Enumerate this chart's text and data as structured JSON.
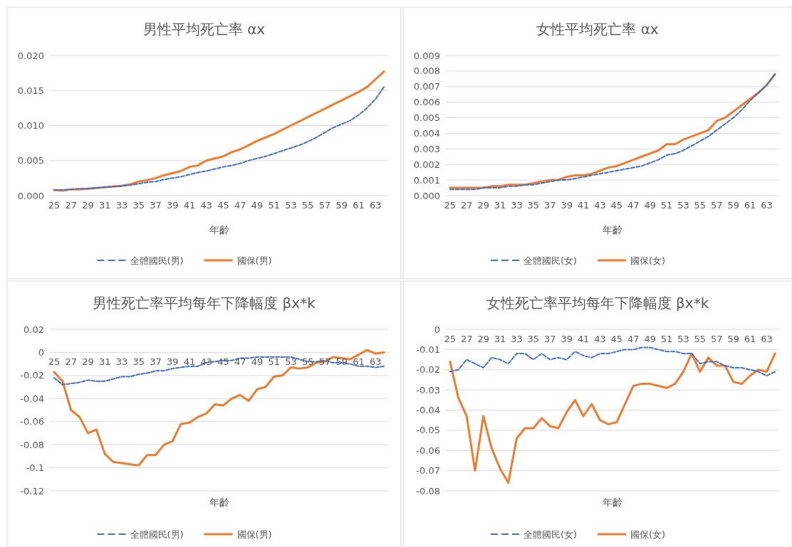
{
  "chart_data": [
    {
      "type": "line",
      "title": "男性平均死亡率 αx",
      "xlabel": "年齡",
      "categories": [
        "25",
        null,
        "27",
        null,
        "29",
        null,
        "31",
        null,
        "33",
        null,
        "35",
        null,
        "37",
        null,
        "39",
        null,
        "41",
        null,
        "43",
        null,
        "45",
        null,
        "47",
        null,
        "49",
        null,
        "51",
        null,
        "53",
        null,
        "55",
        null,
        "57",
        null,
        "59",
        null,
        "61",
        null,
        "63",
        null
      ],
      "series": [
        {
          "name": "全體國民(男)",
          "color": "#4472c4",
          "line_style": "dashed",
          "values": [
            0.0008,
            0.0008,
            0.0009,
            0.001,
            0.001,
            0.0011,
            0.0012,
            0.0013,
            0.0014,
            0.0015,
            0.0017,
            0.0019,
            0.002,
            0.0023,
            0.0025,
            0.0027,
            0.003,
            0.0033,
            0.0035,
            0.0038,
            0.0041,
            0.0043,
            0.0046,
            0.005,
            0.0053,
            0.0056,
            0.006,
            0.0064,
            0.0068,
            0.0072,
            0.0077,
            0.0083,
            0.009,
            0.0097,
            0.0102,
            0.0107,
            0.0115,
            0.0125,
            0.0138,
            0.0155
          ]
        },
        {
          "name": "國保(男)",
          "color": "#ed7d31",
          "line_style": "solid",
          "values": [
            0.0008,
            0.0007,
            0.0009,
            0.0009,
            0.001,
            0.0011,
            0.0012,
            0.0013,
            0.0014,
            0.0016,
            0.002,
            0.0022,
            0.0025,
            0.0029,
            0.0032,
            0.0035,
            0.0041,
            0.0043,
            0.005,
            0.0053,
            0.0056,
            0.0062,
            0.0066,
            0.0072,
            0.0078,
            0.0083,
            0.0088,
            0.0094,
            0.01,
            0.0106,
            0.0112,
            0.0118,
            0.0124,
            0.013,
            0.0136,
            0.0142,
            0.0148,
            0.0155,
            0.0166,
            0.0177
          ]
        }
      ],
      "ylim": [
        0,
        0.02
      ],
      "yticks": [
        {
          "value": 0,
          "label": "0.000"
        },
        {
          "value": 0.005,
          "label": "0.005"
        },
        {
          "value": 0.01,
          "label": "0.010"
        },
        {
          "value": 0.015,
          "label": "0.015"
        },
        {
          "value": 0.02,
          "label": "0.020"
        }
      ],
      "grid": "y",
      "legend": "bottom"
    },
    {
      "type": "line",
      "title": "女性平均死亡率 αx",
      "xlabel": "年齡",
      "categories": [
        "25",
        null,
        "27",
        null,
        "29",
        null,
        "31",
        null,
        "33",
        null,
        "35",
        null,
        "37",
        null,
        "39",
        null,
        "41",
        null,
        "43",
        null,
        "45",
        null,
        "47",
        null,
        "49",
        null,
        "51",
        null,
        "53",
        null,
        "55",
        null,
        "57",
        null,
        "59",
        null,
        "61",
        null,
        "63",
        null
      ],
      "series": [
        {
          "name": "全體國民(女)",
          "color": "#4472c4",
          "line_style": "dashed",
          "values": [
            0.0004,
            0.0004,
            0.0004,
            0.0004,
            0.0005,
            0.0005,
            0.0005,
            0.0006,
            0.0006,
            0.0007,
            0.0007,
            0.0008,
            0.0009,
            0.001,
            0.001,
            0.0011,
            0.0012,
            0.0013,
            0.0014,
            0.0015,
            0.0016,
            0.0017,
            0.0018,
            0.0019,
            0.0021,
            0.0023,
            0.0026,
            0.0027,
            0.0029,
            0.0032,
            0.0035,
            0.0038,
            0.0042,
            0.0046,
            0.005,
            0.0055,
            0.0061,
            0.0066,
            0.0071,
            0.0078
          ]
        },
        {
          "name": "國保(女)",
          "color": "#ed7d31",
          "line_style": "solid",
          "values": [
            0.0005,
            0.0005,
            0.0005,
            0.0005,
            0.0005,
            0.0006,
            0.0006,
            0.0007,
            0.0007,
            0.0007,
            0.0008,
            0.0009,
            0.001,
            0.001,
            0.0012,
            0.0013,
            0.0013,
            0.0014,
            0.0016,
            0.0018,
            0.0019,
            0.0021,
            0.0023,
            0.0025,
            0.0027,
            0.0029,
            0.0033,
            0.0033,
            0.0036,
            0.0038,
            0.004,
            0.0042,
            0.0048,
            0.005,
            0.0054,
            0.0058,
            0.0062,
            0.0066,
            0.0071,
            0.0078
          ]
        }
      ],
      "ylim": [
        0,
        0.009
      ],
      "yticks": [
        {
          "value": 0,
          "label": "0.000"
        },
        {
          "value": 0.001,
          "label": "0.001"
        },
        {
          "value": 0.002,
          "label": "0.002"
        },
        {
          "value": 0.003,
          "label": "0.003"
        },
        {
          "value": 0.004,
          "label": "0.004"
        },
        {
          "value": 0.005,
          "label": "0.005"
        },
        {
          "value": 0.006,
          "label": "0.006"
        },
        {
          "value": 0.007,
          "label": "0.007"
        },
        {
          "value": 0.008,
          "label": "0.008"
        },
        {
          "value": 0.009,
          "label": "0.009"
        }
      ],
      "grid": "y",
      "legend": "bottom"
    },
    {
      "type": "line",
      "title": "男性死亡率平均每年下降幅度 βx*k",
      "xlabel": "年齡",
      "categories": [
        "25",
        null,
        "27",
        null,
        "29",
        null,
        "31",
        null,
        "33",
        null,
        "35",
        null,
        "37",
        null,
        "39",
        null,
        "41",
        null,
        "43",
        null,
        "45",
        null,
        "47",
        null,
        "49",
        null,
        "51",
        null,
        "53",
        null,
        "55",
        null,
        "57",
        null,
        "59",
        null,
        "61",
        null,
        "63",
        null
      ],
      "series": [
        {
          "name": "全體國民(男)",
          "color": "#4472c4",
          "line_style": "dashed",
          "values": [
            -0.022,
            -0.028,
            -0.027,
            -0.026,
            -0.024,
            -0.025,
            -0.025,
            -0.023,
            -0.021,
            -0.021,
            -0.019,
            -0.018,
            -0.016,
            -0.016,
            -0.014,
            -0.013,
            -0.012,
            -0.012,
            -0.009,
            -0.008,
            -0.007,
            -0.007,
            -0.005,
            -0.005,
            -0.004,
            -0.004,
            -0.004,
            -0.004,
            -0.004,
            -0.006,
            -0.008,
            -0.008,
            -0.007,
            -0.009,
            -0.009,
            -0.01,
            -0.012,
            -0.012,
            -0.013,
            -0.012
          ]
        },
        {
          "name": "國保(男)",
          "color": "#ed7d31",
          "line_style": "solid",
          "values": [
            -0.017,
            -0.025,
            -0.05,
            -0.056,
            -0.07,
            -0.067,
            -0.088,
            -0.095,
            -0.096,
            -0.097,
            -0.098,
            -0.089,
            -0.089,
            -0.08,
            -0.077,
            -0.062,
            -0.061,
            -0.056,
            -0.053,
            -0.045,
            -0.046,
            -0.04,
            -0.037,
            -0.042,
            -0.032,
            -0.03,
            -0.021,
            -0.02,
            -0.013,
            -0.014,
            -0.013,
            -0.009,
            -0.008,
            -0.004,
            -0.005,
            -0.006,
            -0.002,
            0.002,
            -0.001,
            0
          ]
        }
      ],
      "ylim": [
        -0.12,
        0.02
      ],
      "yticks": [
        -0.12,
        -0.1,
        -0.08,
        -0.06,
        -0.04,
        -0.02,
        0,
        0.02
      ],
      "grid": "y",
      "legend": "bottom"
    },
    {
      "type": "line",
      "title": "女性死亡率平均每年下降幅度 βx*k",
      "xlabel": "年齡",
      "categories": [
        "25",
        null,
        "27",
        null,
        "29",
        null,
        "31",
        null,
        "33",
        null,
        "35",
        null,
        "37",
        null,
        "39",
        null,
        "41",
        null,
        "43",
        null,
        "45",
        null,
        "47",
        null,
        "49",
        null,
        "51",
        null,
        "53",
        null,
        "55",
        null,
        "57",
        null,
        "59",
        null,
        "61",
        null,
        "63",
        null
      ],
      "series": [
        {
          "name": "全體國民(女)",
          "color": "#4472c4",
          "line_style": "dashed",
          "values": [
            -0.021,
            -0.02,
            -0.015,
            -0.017,
            -0.019,
            -0.014,
            -0.015,
            -0.017,
            -0.012,
            -0.012,
            -0.015,
            -0.012,
            -0.015,
            -0.014,
            -0.015,
            -0.011,
            -0.013,
            -0.014,
            -0.012,
            -0.012,
            -0.011,
            -0.01,
            -0.01,
            -0.009,
            -0.009,
            -0.01,
            -0.011,
            -0.011,
            -0.012,
            -0.012,
            -0.017,
            -0.016,
            -0.016,
            -0.018,
            -0.019,
            -0.019,
            -0.02,
            -0.021,
            -0.023,
            -0.021
          ]
        },
        {
          "name": "國保(女)",
          "color": "#ed7d31",
          "line_style": "solid",
          "values": [
            -0.016,
            -0.034,
            -0.043,
            -0.07,
            -0.043,
            -0.059,
            -0.069,
            -0.076,
            -0.054,
            -0.049,
            -0.049,
            -0.044,
            -0.048,
            -0.049,
            -0.041,
            -0.035,
            -0.043,
            -0.037,
            -0.045,
            -0.047,
            -0.046,
            -0.037,
            -0.028,
            -0.027,
            -0.027,
            -0.028,
            -0.029,
            -0.027,
            -0.021,
            -0.012,
            -0.021,
            -0.014,
            -0.018,
            -0.018,
            -0.026,
            -0.027,
            -0.023,
            -0.02,
            -0.021,
            -0.012
          ]
        }
      ],
      "ylim": [
        -0.08,
        0
      ],
      "yticks": [
        -0.08,
        -0.07,
        -0.06,
        -0.05,
        -0.04,
        -0.03,
        -0.02,
        -0.01,
        0
      ],
      "grid": "y",
      "legend": "bottom"
    }
  ]
}
